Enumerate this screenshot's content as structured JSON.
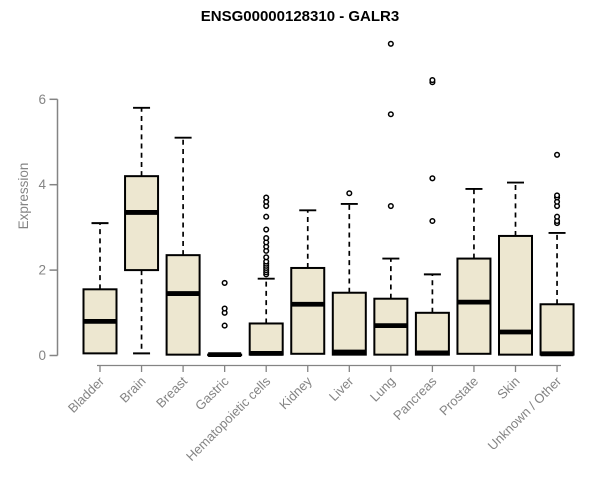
{
  "chart_data": {
    "type": "boxplot",
    "title": "ENSG00000128310 - GALR3",
    "ylabel": "Expression",
    "xlabel": "",
    "ylim": [
      0,
      6
    ],
    "yticks": [
      0,
      2,
      4,
      6
    ],
    "grid": false,
    "legend": "none",
    "colors": {
      "box_fill": "#EDE7D0",
      "box_stroke": "#000000",
      "median": "#000000",
      "whisker": "#000000",
      "outlier_stroke": "#000000",
      "axis": "#848484",
      "tick_label": "#848484",
      "title": "#000000"
    },
    "categories": [
      "Bladder",
      "Brain",
      "Breast",
      "Gastric",
      "Hematopoietic cells",
      "Kidney",
      "Liver",
      "Lung",
      "Pancreas",
      "Prostate",
      "Skin",
      "Unknown / Other"
    ],
    "boxes": [
      {
        "category": "Bladder",
        "min": 0.05,
        "q1": 0.05,
        "median": 0.8,
        "q3": 1.55,
        "max": 3.1,
        "outliers": []
      },
      {
        "category": "Brain",
        "min": 0.05,
        "q1": 2.0,
        "median": 3.35,
        "q3": 4.2,
        "max": 5.8,
        "outliers": []
      },
      {
        "category": "Breast",
        "min": 0.02,
        "q1": 0.02,
        "median": 1.45,
        "q3": 2.35,
        "max": 5.1,
        "outliers": []
      },
      {
        "category": "Gastric",
        "min": 0.02,
        "q1": 0.02,
        "median": 0.02,
        "q3": 0.02,
        "max": 0.02,
        "outliers": [
          0.7,
          1.0,
          1.1,
          1.7
        ]
      },
      {
        "category": "Hematopoietic cells",
        "min": 0.02,
        "q1": 0.02,
        "median": 0.05,
        "q3": 0.75,
        "max": 1.8,
        "outliers": [
          1.9,
          1.95,
          2.0,
          2.05,
          2.1,
          2.15,
          2.2,
          2.3,
          2.45,
          2.55,
          2.65,
          2.75,
          2.95,
          3.25,
          3.5,
          3.6,
          3.7
        ]
      },
      {
        "category": "Kidney",
        "min": 0.04,
        "q1": 0.04,
        "median": 1.2,
        "q3": 2.05,
        "max": 3.4,
        "outliers": []
      },
      {
        "category": "Liver",
        "min": 0.02,
        "q1": 0.02,
        "median": 0.08,
        "q3": 1.47,
        "max": 3.55,
        "outliers": [
          3.8
        ]
      },
      {
        "category": "Lung",
        "min": 0.02,
        "q1": 0.02,
        "median": 0.7,
        "q3": 1.33,
        "max": 2.27,
        "outliers": [
          3.5,
          5.65,
          7.3
        ]
      },
      {
        "category": "Pancreas",
        "min": 0.02,
        "q1": 0.02,
        "median": 0.06,
        "q3": 1.0,
        "max": 1.9,
        "outliers": [
          3.15,
          4.15,
          6.4,
          6.45
        ]
      },
      {
        "category": "Prostate",
        "min": 0.04,
        "q1": 0.04,
        "median": 1.25,
        "q3": 2.27,
        "max": 3.9,
        "outliers": []
      },
      {
        "category": "Skin",
        "min": 0.02,
        "q1": 0.02,
        "median": 0.55,
        "q3": 2.8,
        "max": 4.05,
        "outliers": []
      },
      {
        "category": "Unknown / Other",
        "min": 0.02,
        "q1": 0.02,
        "median": 0.04,
        "q3": 1.2,
        "max": 2.87,
        "outliers": [
          3.1,
          3.15,
          3.25,
          3.5,
          3.6,
          3.7,
          3.75,
          4.7
        ]
      }
    ]
  }
}
